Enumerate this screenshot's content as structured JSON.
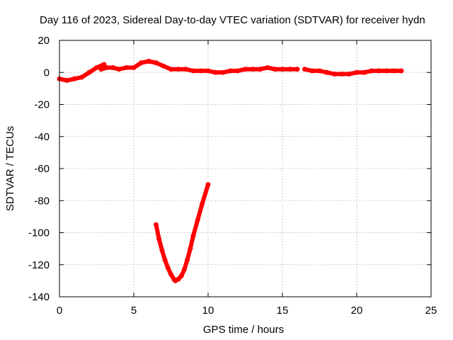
{
  "chart_data": {
    "type": "scatter",
    "title": "Day 116 of 2023, Sidereal Day-to-day VTEC variation (SDTVAR) for receiver hydn",
    "xlabel": "GPS time / hours",
    "ylabel": "SDTVAR / TECUs",
    "xlim": [
      0,
      25
    ],
    "ylim": [
      -140,
      20
    ],
    "xticks": [
      0,
      5,
      10,
      15,
      20,
      25
    ],
    "yticks": [
      20,
      0,
      -20,
      -40,
      -60,
      -80,
      -100,
      -120,
      -140
    ],
    "grid": true,
    "color": "#ff0000",
    "series": [
      {
        "name": "segment-1",
        "x": [
          0,
          0.5,
          1.0,
          1.5,
          2.0,
          2.5,
          3.0
        ],
        "y": [
          -4,
          -5,
          -4,
          -3,
          0,
          3,
          5
        ]
      },
      {
        "name": "segment-2",
        "x": [
          2.8,
          3.2,
          3.6,
          4.0,
          4.5,
          5.0,
          5.5,
          6.0,
          6.5,
          7.0,
          7.5,
          8.0,
          8.5,
          9.0,
          9.5,
          10.0,
          10.5,
          11.0,
          11.5,
          12.0,
          12.5,
          13.0,
          13.5,
          14.0,
          14.5,
          15.0,
          15.5,
          16.0
        ],
        "y": [
          2,
          3,
          3,
          2,
          3,
          3,
          6,
          7,
          6,
          4,
          2,
          2,
          2,
          1,
          1,
          1,
          0,
          0,
          1,
          1,
          2,
          2,
          2,
          3,
          2,
          2,
          2,
          2
        ]
      },
      {
        "name": "segment-3",
        "x": [
          16.5,
          17.0,
          17.5,
          18.0,
          18.5,
          19.0,
          19.5,
          20.0,
          20.5,
          21.0,
          21.5,
          22.0,
          22.5,
          23.0
        ],
        "y": [
          2,
          1,
          1,
          0,
          -1,
          -1,
          -1,
          0,
          0,
          1,
          1,
          1,
          1,
          1
        ]
      },
      {
        "name": "segment-4",
        "x": [
          6.5,
          6.7,
          6.9,
          7.1,
          7.3,
          7.5,
          7.7,
          7.8,
          8.0,
          8.2,
          8.4,
          8.6,
          8.8,
          9.0,
          9.3,
          9.6,
          10.0
        ],
        "y": [
          -95,
          -104,
          -111,
          -117,
          -122,
          -126,
          -129,
          -130,
          -129,
          -127,
          -123,
          -117,
          -110,
          -102,
          -92,
          -82,
          -70
        ]
      }
    ]
  }
}
